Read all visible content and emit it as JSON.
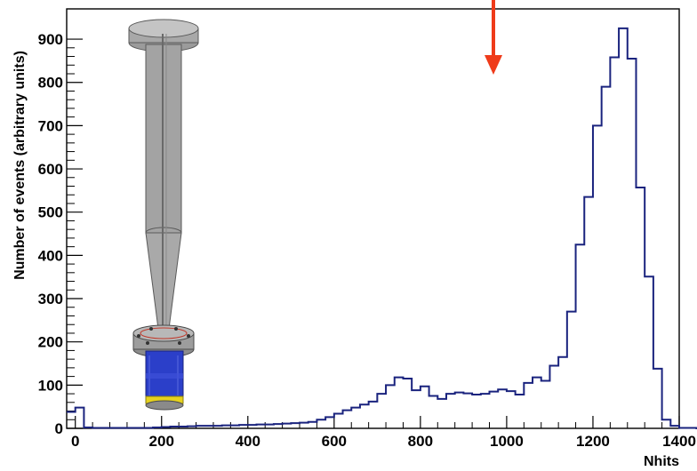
{
  "chart_data": {
    "type": "histogram",
    "xlabel": "Nhits",
    "ylabel": "Number of events (arbitrary units)",
    "xlim": [
      0,
      1400
    ],
    "ylim": [
      0,
      970
    ],
    "x_ticks": [
      0,
      200,
      400,
      600,
      800,
      1000,
      1200,
      1400
    ],
    "y_ticks": [
      0,
      100,
      200,
      300,
      400,
      500,
      600,
      700,
      800,
      900
    ],
    "grid": false,
    "bin_width": 20,
    "bin_edges_start": -20,
    "values": [
      38,
      48,
      2,
      1,
      1,
      1,
      1,
      1,
      1,
      1,
      2,
      3,
      4,
      4,
      5,
      6,
      6,
      6,
      7,
      7,
      8,
      8,
      9,
      9,
      10,
      11,
      12,
      13,
      15,
      20,
      26,
      34,
      42,
      48,
      55,
      62,
      80,
      100,
      118,
      115,
      88,
      97,
      75,
      68,
      80,
      83,
      81,
      78,
      80,
      85,
      90,
      86,
      78,
      105,
      118,
      110,
      145,
      165,
      270,
      425,
      535,
      700,
      790,
      858,
      925,
      855,
      557,
      351,
      138,
      20,
      6,
      1,
      1,
      0,
      0,
      0,
      0
    ],
    "series_color": "#1a237e",
    "annotation_arrow_color": "#ef3b1a",
    "inset_image": "detector-apparatus"
  }
}
